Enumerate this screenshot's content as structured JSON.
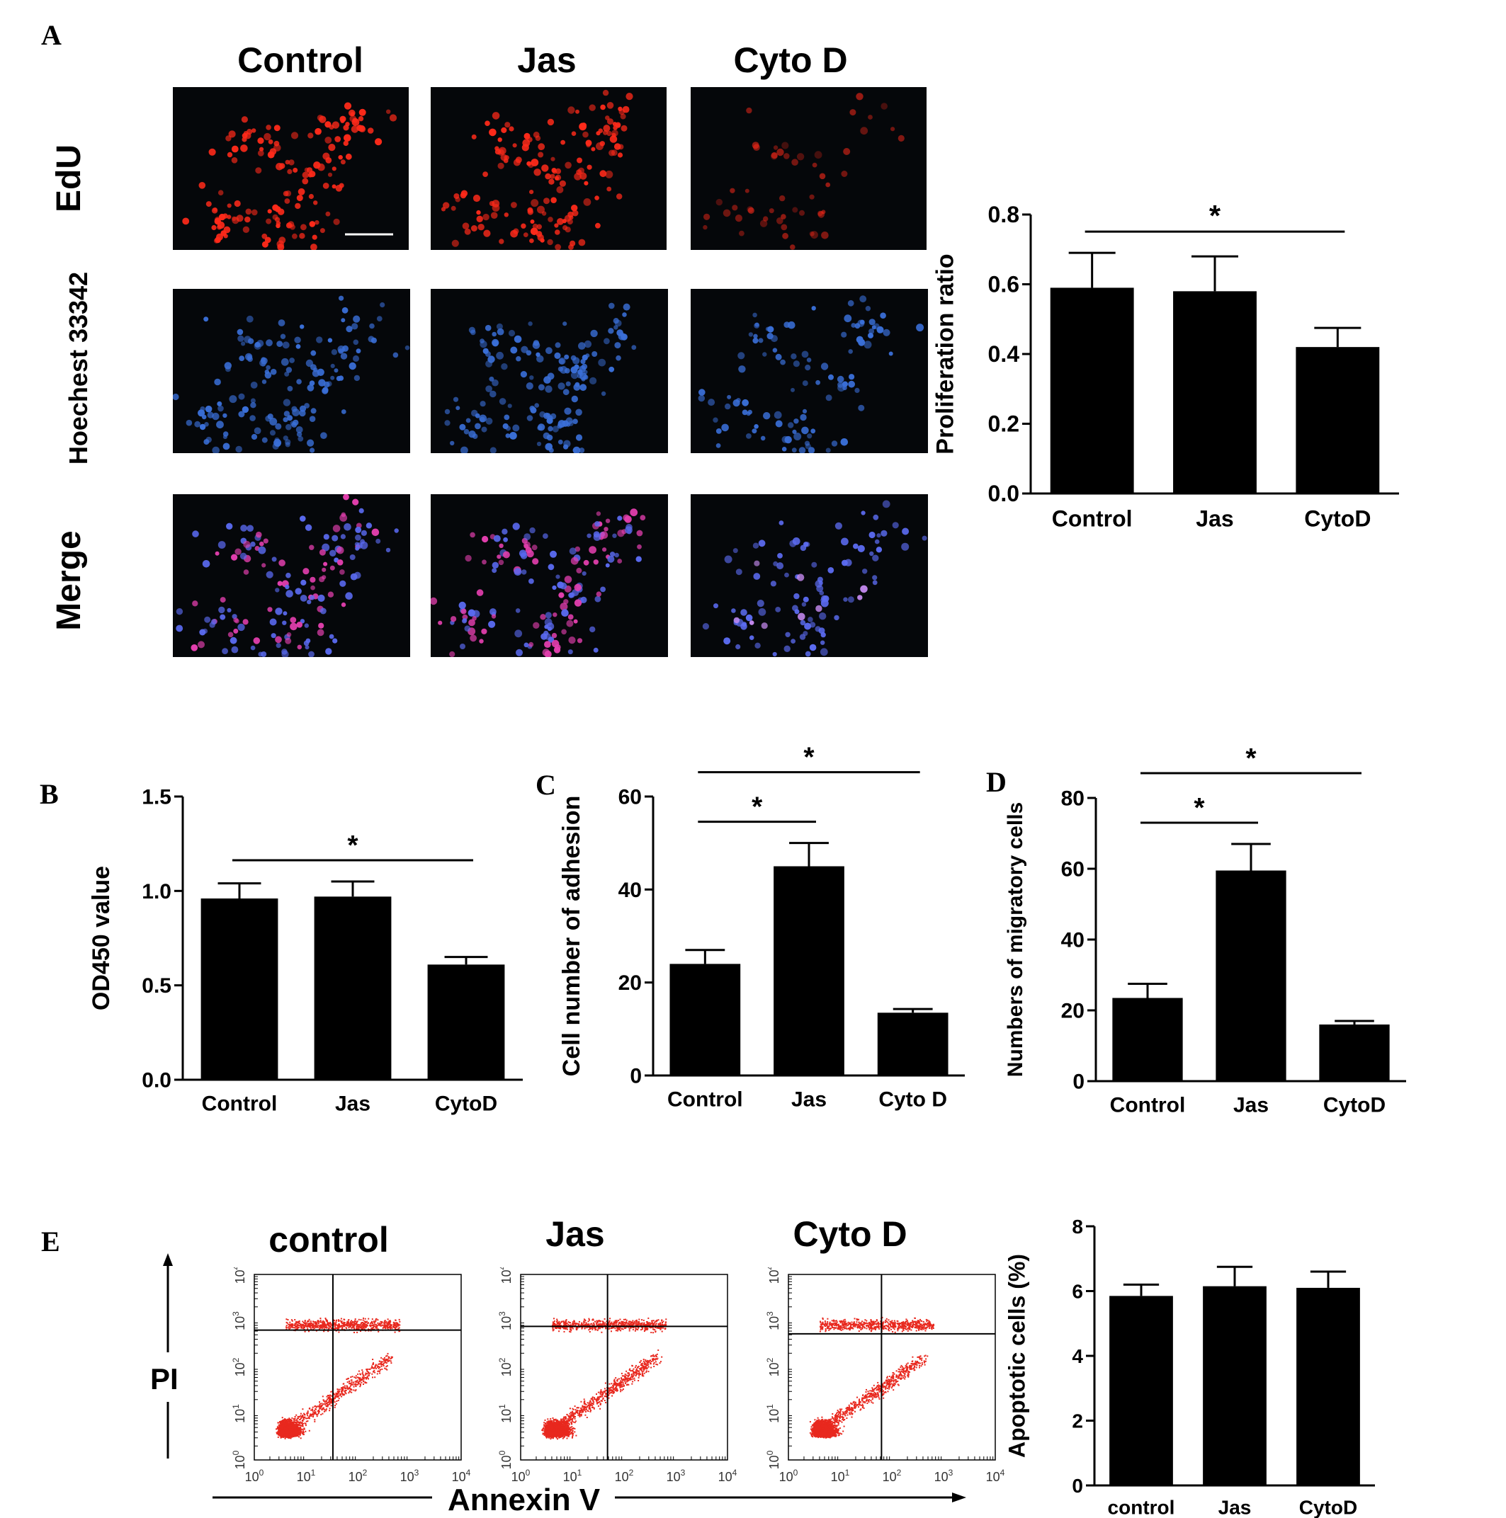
{
  "panel_letters": {
    "a": "A",
    "b": "B",
    "c": "C",
    "d": "D",
    "e": "E"
  },
  "panel_a": {
    "columns": [
      "Control",
      "Jas",
      "Cyto D"
    ],
    "rows": [
      "EdU",
      "Hoechest 33342",
      "Merge"
    ]
  },
  "panel_e": {
    "columns": [
      "control",
      "Jas",
      "Cyto D"
    ],
    "y_axis_label": "PI",
    "x_axis_label": "Annexin V",
    "log_tick_labels": [
      "10^0",
      "10^1",
      "10^2",
      "10^3",
      "10^4"
    ]
  },
  "chart_data": [
    {
      "id": "a",
      "type": "bar",
      "categories": [
        "Control",
        "Jas",
        "CytoD"
      ],
      "values": [
        0.59,
        0.58,
        0.42
      ],
      "errors": [
        0.1,
        0.1,
        0.055
      ],
      "ylabel": "Proliferation ratio",
      "ylim": [
        0,
        0.8
      ],
      "yticks": [
        "0.0",
        "0.2",
        "0.4",
        "0.6",
        "0.8"
      ],
      "significance": [
        {
          "from": 0,
          "to": 2,
          "label": "*"
        }
      ],
      "color": "#000000"
    },
    {
      "id": "b",
      "type": "bar",
      "categories": [
        "Control",
        "Jas",
        "CytoD"
      ],
      "values": [
        0.96,
        0.97,
        0.61
      ],
      "errors": [
        0.08,
        0.08,
        0.04
      ],
      "ylabel": "OD450 value",
      "ylim": [
        0,
        1.5
      ],
      "yticks": [
        "0.0",
        "0.5",
        "1.0",
        "1.5"
      ],
      "significance": [
        {
          "from": 0,
          "to": 2,
          "label": "*"
        }
      ],
      "color": "#000000"
    },
    {
      "id": "c",
      "type": "bar",
      "categories": [
        "Control",
        "Jas",
        "Cyto D"
      ],
      "values": [
        24,
        45,
        13.5
      ],
      "errors": [
        3,
        5,
        0.8
      ],
      "ylabel": "Cell number of adhesion",
      "ylim": [
        0,
        60
      ],
      "yticks": [
        "0",
        "20",
        "40",
        "60"
      ],
      "significance": [
        {
          "from": 0,
          "to": 1,
          "label": "*"
        },
        {
          "from": 0,
          "to": 2,
          "label": "*"
        }
      ],
      "color": "#000000"
    },
    {
      "id": "d",
      "type": "bar",
      "categories": [
        "Control",
        "Jas",
        "CytoD"
      ],
      "values": [
        23.5,
        59.5,
        16
      ],
      "errors": [
        4,
        7.5,
        1
      ],
      "ylabel": "Numbers of migratory cells",
      "ylim": [
        0,
        80
      ],
      "yticks": [
        "0",
        "20",
        "40",
        "60",
        "80"
      ],
      "significance": [
        {
          "from": 0,
          "to": 1,
          "label": "*"
        },
        {
          "from": 0,
          "to": 2,
          "label": "*"
        }
      ],
      "color": "#000000"
    },
    {
      "id": "e",
      "type": "bar",
      "categories": [
        "control",
        "Jas",
        "CytoD"
      ],
      "values": [
        5.85,
        6.15,
        6.1
      ],
      "errors": [
        0.35,
        0.6,
        0.5
      ],
      "ylabel": "Apoptotic cells (%)",
      "ylim": [
        0,
        8
      ],
      "yticks": [
        "0",
        "2",
        "4",
        "6",
        "8"
      ],
      "significance": [],
      "color": "#000000"
    }
  ],
  "colors": {
    "edu": "#ff2a1a",
    "hoechst": "#3a6fd8",
    "merge": "#c050d0",
    "dot_plot": "#e8281e",
    "micro_bg": "#05070a"
  }
}
